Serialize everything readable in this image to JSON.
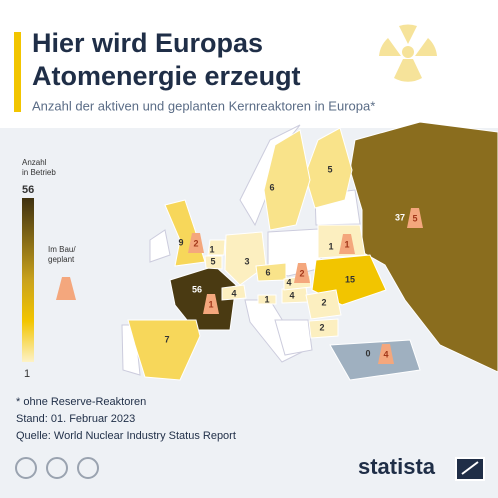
{
  "header": {
    "title_line1": "Hier wird Europas",
    "title_line2": "Atomenergie erzeugt",
    "subtitle": "Anzahl der aktiven und geplanten Kernreaktoren in Europa*"
  },
  "legend": {
    "operating_label_line1": "Anzahl",
    "operating_label_line2": "in Betrieb",
    "max": 56,
    "min": 1,
    "construction_label_line1": "Im Bau/",
    "construction_label_line2": "geplant"
  },
  "map": {
    "countries": [
      {
        "operating": 37,
        "construction": 5,
        "color": "#8a6d1e"
      },
      {
        "operating": 5,
        "color": "#f9e38a"
      },
      {
        "operating": 6,
        "color": "#f9e38a"
      },
      {
        "operating": 9,
        "construction": 2,
        "color": "#f7d75a"
      },
      {
        "operating": 56,
        "construction": 1,
        "color": "#4a3a12"
      },
      {
        "operating": 7,
        "color": "#f7d75a"
      },
      {
        "operating": 5,
        "color": "#fcefc0"
      },
      {
        "operating": 1,
        "color": "#fcefc0"
      },
      {
        "operating": 3,
        "color": "#fcefc0"
      },
      {
        "operating": 6,
        "color": "#f9e38a"
      },
      {
        "operating": 4,
        "color": "#fcefc0"
      },
      {
        "operating": 1,
        "color": "#fcefc0"
      },
      {
        "operating": 4,
        "color": "#fcefc0"
      },
      {
        "operating": 4,
        "construction": 2,
        "color": "#fcefc0"
      },
      {
        "operating": 15,
        "color": "#f2c500"
      },
      {
        "operating": 1,
        "construction": 1,
        "color": "#fcefc0"
      },
      {
        "operating": 2,
        "color": "#fcefc0"
      },
      {
        "operating": 2,
        "color": "#fcefc0"
      },
      {
        "operating": 0,
        "construction": 4,
        "color": "#9fb0c0"
      }
    ]
  },
  "footer": {
    "note": "* ohne Reserve-Reaktoren",
    "date": "Stand: 01. Februar 2023",
    "source": "Quelle: World Nuclear Industry Status Report",
    "brand": "statista"
  }
}
